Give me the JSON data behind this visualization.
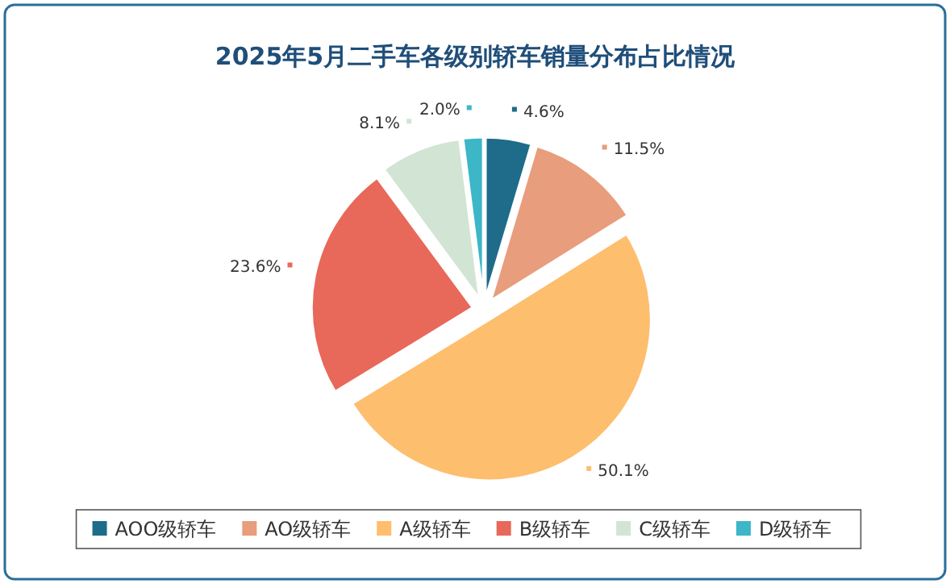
{
  "chart_data": {
    "type": "pie",
    "title": "2025年5月二手车各级别轿车销量分布占比情况",
    "categories": [
      "AOO级轿车",
      "AO级轿车",
      "A级轿车",
      "B级轿车",
      "C级轿车",
      "D级轿车"
    ],
    "values": [
      4.6,
      11.5,
      50.1,
      23.6,
      8.1,
      2.0
    ],
    "value_labels": [
      "4.6%",
      "11.5%",
      "50.1%",
      "23.6%",
      "8.1%",
      "2.0%"
    ],
    "colors": [
      "#1f6b8a",
      "#e89d7c",
      "#fdbe6e",
      "#e8685a",
      "#d2e4d3",
      "#3db6c8"
    ],
    "legend": "bottom"
  }
}
